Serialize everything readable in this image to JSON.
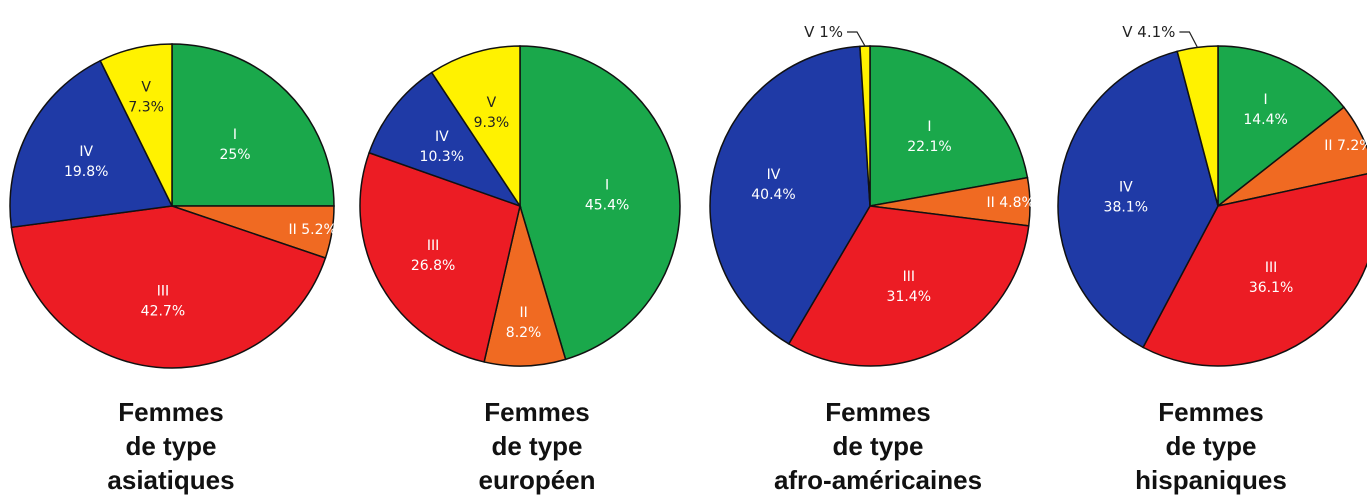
{
  "chart_data": [
    {
      "type": "pie",
      "caption": [
        "Femmes",
        "de type",
        "asiatiques"
      ],
      "slices": [
        {
          "label": "I",
          "value": 25,
          "text": "25%",
          "color": "#1aa84b"
        },
        {
          "label": "II",
          "value": 5.2,
          "text": "5.2%",
          "color": "#f06a22"
        },
        {
          "label": "III",
          "value": 42.7,
          "text": "42.7%",
          "color": "#ec1c24"
        },
        {
          "label": "IV",
          "value": 19.8,
          "text": "19.8%",
          "color": "#1f3aa6"
        },
        {
          "label": "V",
          "value": 7.3,
          "text": "7.3%",
          "color": "#fff200"
        }
      ]
    },
    {
      "type": "pie",
      "caption": [
        "Femmes",
        "de type",
        "européen"
      ],
      "slices": [
        {
          "label": "I",
          "value": 45.4,
          "text": "45.4%",
          "color": "#1aa84b"
        },
        {
          "label": "II",
          "value": 8.2,
          "text": "8.2%",
          "color": "#f06a22"
        },
        {
          "label": "III",
          "value": 26.8,
          "text": "26.8%",
          "color": "#ec1c24"
        },
        {
          "label": "IV",
          "value": 10.3,
          "text": "10.3%",
          "color": "#1f3aa6"
        },
        {
          "label": "V",
          "value": 9.3,
          "text": "9.3%",
          "color": "#fff200"
        }
      ]
    },
    {
      "type": "pie",
      "caption": [
        "Femmes",
        "de type",
        "afro-américaines"
      ],
      "slices": [
        {
          "label": "I",
          "value": 22.1,
          "text": "22.1%",
          "color": "#1aa84b"
        },
        {
          "label": "II",
          "value": 4.8,
          "text": "4.8%",
          "color": "#f06a22"
        },
        {
          "label": "III",
          "value": 31.4,
          "text": "31.4%",
          "color": "#ec1c24"
        },
        {
          "label": "IV",
          "value": 40.4,
          "text": "40.4%",
          "color": "#1f3aa6"
        },
        {
          "label": "V",
          "value": 1,
          "text": "1%",
          "color": "#fff200"
        }
      ]
    },
    {
      "type": "pie",
      "caption": [
        "Femmes",
        "de type",
        "hispaniques"
      ],
      "slices": [
        {
          "label": "I",
          "value": 14.4,
          "text": "14.4%",
          "color": "#1aa84b"
        },
        {
          "label": "II",
          "value": 7.2,
          "text": "7.2%",
          "color": "#f06a22"
        },
        {
          "label": "III",
          "value": 36.1,
          "text": "36.1%",
          "color": "#ec1c24"
        },
        {
          "label": "IV",
          "value": 38.1,
          "text": "38.1%",
          "color": "#1f3aa6"
        },
        {
          "label": "V",
          "value": 4.1,
          "text": "4.1%",
          "color": "#fff200"
        }
      ]
    }
  ]
}
